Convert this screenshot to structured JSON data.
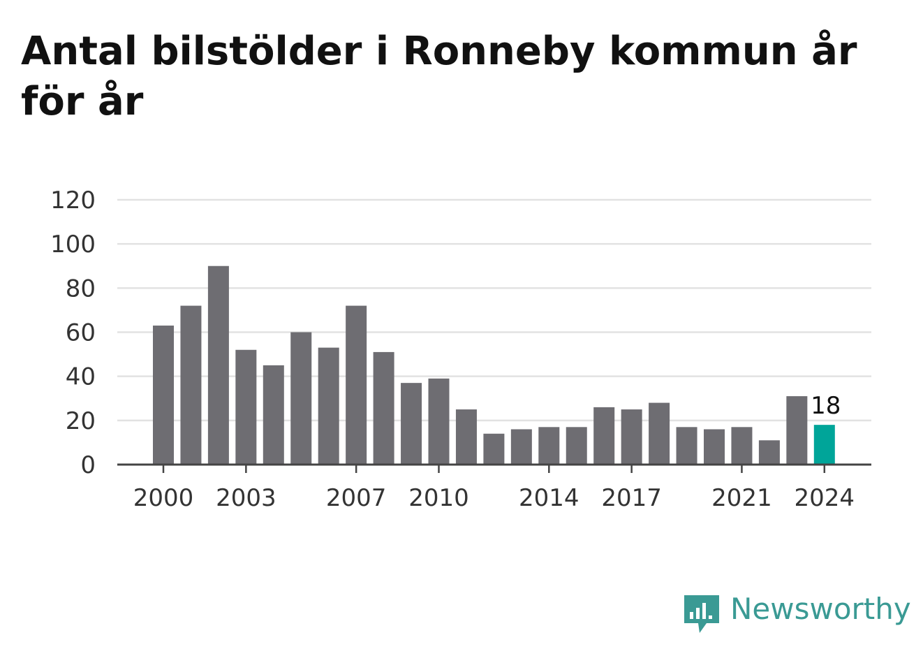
{
  "chart_data": {
    "type": "bar",
    "title": "Antal bilstölder i Ronneby kommun år för år",
    "xlabel": "",
    "ylabel": "",
    "ylim": [
      0,
      120
    ],
    "yticks": [
      0,
      20,
      40,
      60,
      80,
      100,
      120
    ],
    "xtick_labels": [
      "2000",
      "2003",
      "2007",
      "2010",
      "2014",
      "2017",
      "2021",
      "2024"
    ],
    "categories": [
      "2000",
      "2001",
      "2002",
      "2003",
      "2004",
      "2005",
      "2006",
      "2007",
      "2008",
      "2009",
      "2010",
      "2011",
      "2012",
      "2013",
      "2014",
      "2015",
      "2016",
      "2017",
      "2018",
      "2019",
      "2020",
      "2021",
      "2022",
      "2023",
      "2024"
    ],
    "values": [
      63,
      72,
      90,
      52,
      45,
      60,
      53,
      72,
      51,
      37,
      39,
      25,
      14,
      16,
      17,
      17,
      26,
      25,
      28,
      17,
      16,
      17,
      11,
      31,
      18
    ],
    "highlight_category": "2024",
    "data_labels": [
      {
        "category": "2024",
        "text": "18"
      }
    ],
    "grid": true,
    "colors": {
      "bar": "#6e6d72",
      "highlight": "#00a599",
      "grid": "#e2e2e2",
      "axis": "#444444",
      "tick_text": "#333333"
    }
  },
  "branding": {
    "name": "Newsworthy",
    "icon": "bar-chart-speech-bubble-icon",
    "color": "#3a9a94"
  }
}
